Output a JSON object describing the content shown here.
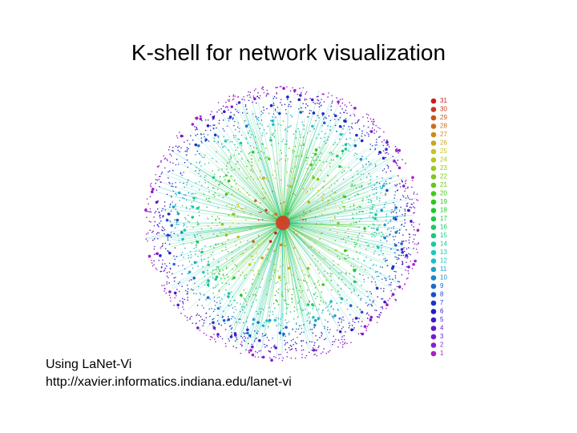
{
  "title": "K-shell for network visualization",
  "legend": {
    "items": [
      "31",
      "30",
      "29",
      "28",
      "27",
      "26",
      "25",
      "24",
      "23",
      "22",
      "21",
      "20",
      "19",
      "18",
      "17",
      "16",
      "15",
      "14",
      "13",
      "12",
      "11",
      "10",
      "9",
      "8",
      "7",
      "6",
      "5",
      "4",
      "3",
      "2",
      "1"
    ]
  },
  "caption": {
    "line1": "Using LaNet-Vi",
    "line2": "http://xavier.informatics.indiana.edu/lanet-vi"
  }
}
